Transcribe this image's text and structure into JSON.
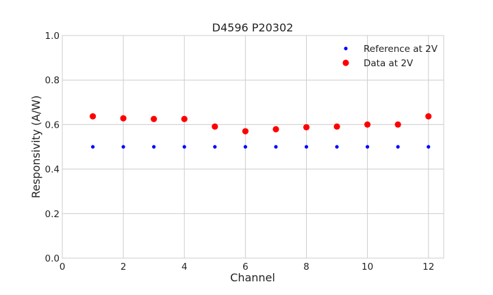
{
  "chart_data": {
    "type": "scatter",
    "title": "D4596 P20302",
    "xlabel": "Channel",
    "ylabel": "Responsivity (A/W)",
    "xlim": [
      0,
      12.5
    ],
    "ylim": [
      0.0,
      1.0
    ],
    "xticks": [
      "0",
      "2",
      "4",
      "6",
      "8",
      "10",
      "12"
    ],
    "yticks": [
      "0.0",
      "0.2",
      "0.4",
      "0.6",
      "0.8",
      "1.0"
    ],
    "grid": true,
    "legend_position": "top-right",
    "series": [
      {
        "name": "Reference at 2V",
        "color": "#0000ff",
        "marker": "small-dot",
        "x": [
          1,
          2,
          3,
          4,
          5,
          6,
          7,
          8,
          9,
          10,
          11,
          12
        ],
        "y": [
          0.5,
          0.5,
          0.5,
          0.5,
          0.5,
          0.5,
          0.5,
          0.5,
          0.5,
          0.5,
          0.5,
          0.5
        ]
      },
      {
        "name": "Data at 2V",
        "color": "#ff0000",
        "marker": "large-dot",
        "x": [
          1,
          2,
          3,
          4,
          5,
          6,
          7,
          8,
          9,
          10,
          11,
          12
        ],
        "y": [
          0.637,
          0.628,
          0.625,
          0.625,
          0.591,
          0.57,
          0.579,
          0.588,
          0.591,
          0.6,
          0.6,
          0.637
        ]
      }
    ]
  }
}
